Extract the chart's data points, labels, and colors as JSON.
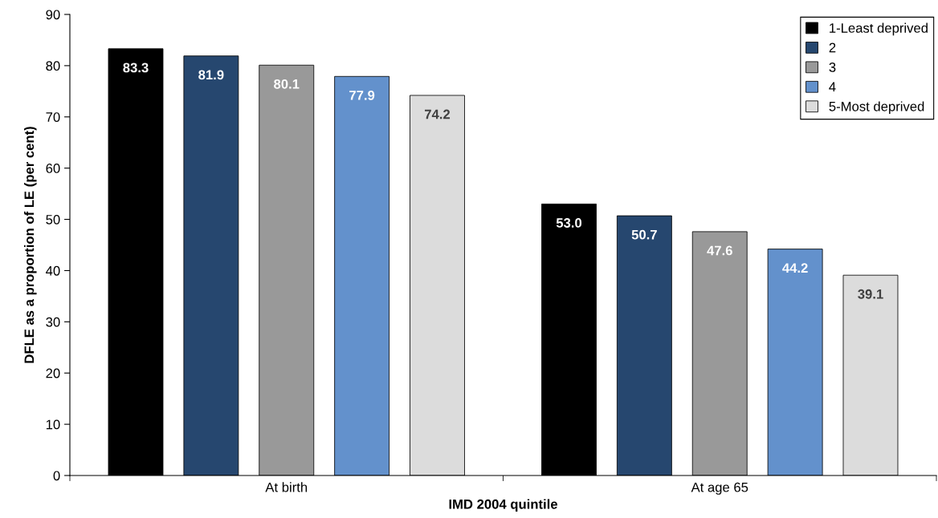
{
  "chart_data": {
    "type": "bar",
    "xlabel": "IMD 2004 quintile",
    "ylabel": "DFLE as a proportion of LE (per cent)",
    "categories": [
      "At birth",
      "At age 65"
    ],
    "series": [
      {
        "name": "1-Least deprived",
        "color": "#000000",
        "values": [
          83.3,
          53.0
        ],
        "value_labels": [
          "83.3",
          "53.0"
        ]
      },
      {
        "name": "2",
        "color": "#26476f",
        "values": [
          81.9,
          50.7
        ],
        "value_labels": [
          "81.9",
          "50.7"
        ]
      },
      {
        "name": "3",
        "color": "#999999",
        "values": [
          80.1,
          47.6
        ],
        "value_labels": [
          "80.1",
          "47.6"
        ]
      },
      {
        "name": "4",
        "color": "#6391cc",
        "values": [
          77.9,
          44.2
        ],
        "value_labels": [
          "77.9",
          "44.2"
        ]
      },
      {
        "name": "5-Most deprived",
        "color": "#dcdcdc",
        "values": [
          74.2,
          39.1
        ],
        "value_labels": [
          "74.2",
          "39.1"
        ]
      }
    ],
    "ylim": [
      0,
      90
    ],
    "yticks": [
      0,
      10,
      20,
      30,
      40,
      50,
      60,
      70,
      80,
      90
    ],
    "grid": false,
    "legend": "top right"
  }
}
